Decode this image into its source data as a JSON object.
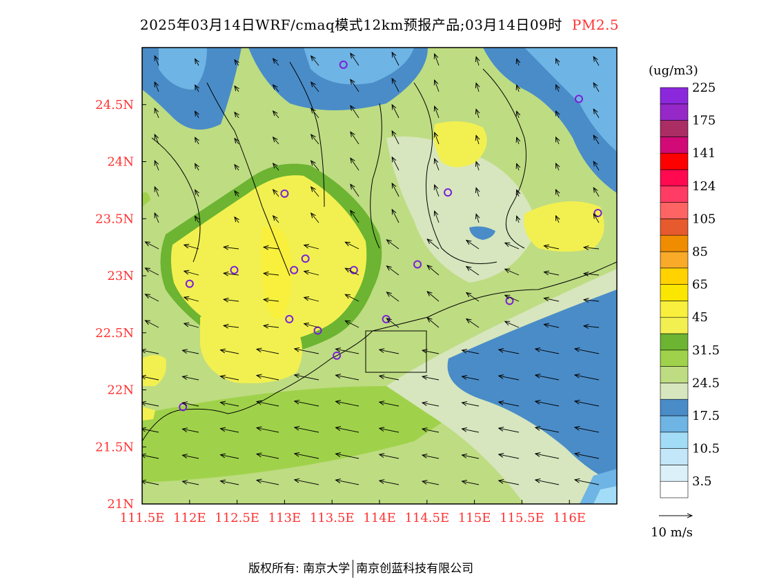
{
  "title": {
    "main": "2025年03月14日WRF/cmaq模式12km预报产品;03月14日09时",
    "variable": "PM2.5"
  },
  "map": {
    "lon_min": 111.5,
    "lon_max": 116.5,
    "lat_min": 21.0,
    "lat_max": 25.0,
    "x_ticks": [
      "111.5E",
      "112E",
      "112.5E",
      "113E",
      "113.5E",
      "114E",
      "114.5E",
      "115E",
      "115.5E",
      "116E"
    ],
    "y_ticks": [
      "21N",
      "21.5N",
      "22N",
      "22.5N",
      "23N",
      "23.5N",
      "24N",
      "24.5N"
    ],
    "stations": [
      {
        "lon": 113.62,
        "lat": 24.85
      },
      {
        "lon": 116.1,
        "lat": 24.55
      },
      {
        "lon": 113.0,
        "lat": 23.72
      },
      {
        "lon": 114.72,
        "lat": 23.73
      },
      {
        "lon": 116.3,
        "lat": 23.55
      },
      {
        "lon": 113.22,
        "lat": 23.15
      },
      {
        "lon": 112.47,
        "lat": 23.05
      },
      {
        "lon": 113.1,
        "lat": 23.05
      },
      {
        "lon": 113.73,
        "lat": 23.05
      },
      {
        "lon": 114.4,
        "lat": 23.1
      },
      {
        "lon": 112.0,
        "lat": 22.93
      },
      {
        "lon": 115.37,
        "lat": 22.78
      },
      {
        "lon": 113.05,
        "lat": 22.62
      },
      {
        "lon": 113.35,
        "lat": 22.52
      },
      {
        "lon": 114.07,
        "lat": 22.62
      },
      {
        "lon": 113.55,
        "lat": 22.3
      },
      {
        "lon": 111.93,
        "lat": 21.85
      }
    ]
  },
  "legend": {
    "unit": "(ug/m3)",
    "colors": [
      "#ffffff",
      "#dcf0fa",
      "#c3e6f8",
      "#a3dcf6",
      "#6eb4e4",
      "#4a8cc8",
      "#d7e6be",
      "#bedc82",
      "#9fd24a",
      "#6cb432",
      "#f2f050",
      "#f8f03c",
      "#fae600",
      "#ffd200",
      "#f8aa28",
      "#f08c00",
      "#e65a2d",
      "#ff6464",
      "#ff3c64",
      "#ff0a50",
      "#ff0000",
      "#d20a78",
      "#aa2d64",
      "#9628c8",
      "#8c28dc"
    ],
    "labels": [
      "3.5",
      "10.5",
      "17.5",
      "24.5",
      "31.5",
      "45",
      "65",
      "85",
      "105",
      "124",
      "141",
      "175",
      "225"
    ],
    "wind_ref": "10 m/s"
  },
  "copyright": {
    "left": "版权所有: 南京大学",
    "right": "南京创蓝科技有限公司"
  }
}
